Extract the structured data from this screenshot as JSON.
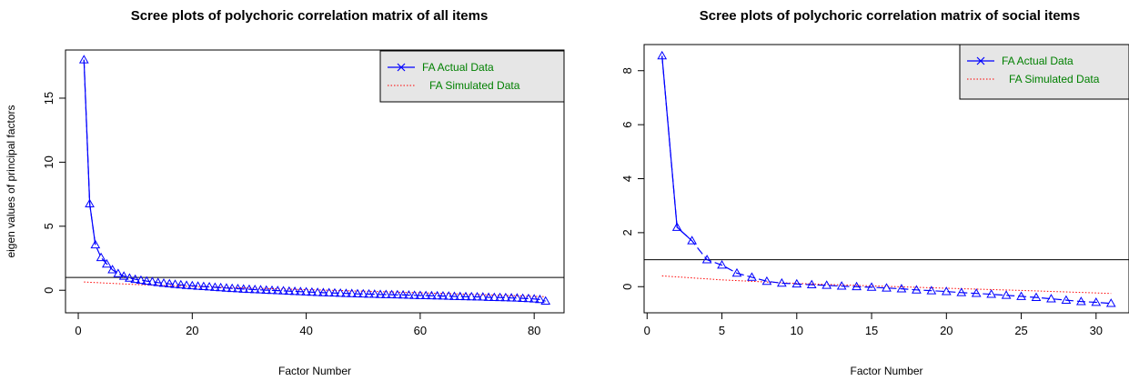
{
  "chart_data": [
    {
      "type": "line",
      "title": "Scree plots of polychoric correlation matrix of all items",
      "xlabel": "Factor Number",
      "ylabel": "eigen values of principal factors",
      "xlim": [
        1,
        82
      ],
      "ylim": [
        -1,
        18
      ],
      "xticks": [
        "0",
        "20",
        "40",
        "60",
        "80"
      ],
      "yticks": [
        "0",
        "5",
        "10",
        "15"
      ],
      "reference_line_y": 1,
      "legend": {
        "placement": "top-right",
        "items": [
          {
            "label": "FA  Actual Data",
            "style": "solid-blue-x"
          },
          {
            "label": "FA  Simulated Data",
            "style": "dotted-red"
          }
        ]
      },
      "series": [
        {
          "name": "FA  Actual Data",
          "color": "#0000ff",
          "x_start": 1,
          "values": [
            18.0,
            6.75,
            3.55,
            2.55,
            2.05,
            1.6,
            1.3,
            1.1,
            0.95,
            0.85,
            0.78,
            0.72,
            0.66,
            0.6,
            0.55,
            0.5,
            0.46,
            0.42,
            0.38,
            0.35,
            0.32,
            0.29,
            0.26,
            0.23,
            0.2,
            0.17,
            0.14,
            0.12,
            0.09,
            0.07,
            0.05,
            0.03,
            0.01,
            -0.01,
            -0.03,
            -0.05,
            -0.07,
            -0.09,
            -0.11,
            -0.13,
            -0.15,
            -0.17,
            -0.19,
            -0.2,
            -0.22,
            -0.23,
            -0.25,
            -0.26,
            -0.28,
            -0.29,
            -0.3,
            -0.31,
            -0.33,
            -0.34,
            -0.35,
            -0.36,
            -0.37,
            -0.38,
            -0.4,
            -0.41,
            -0.42,
            -0.43,
            -0.44,
            -0.45,
            -0.46,
            -0.48,
            -0.49,
            -0.5,
            -0.51,
            -0.52,
            -0.53,
            -0.55,
            -0.56,
            -0.57,
            -0.58,
            -0.6,
            -0.61,
            -0.63,
            -0.65,
            -0.68,
            -0.72,
            -0.85
          ]
        },
        {
          "name": "FA  Simulated Data",
          "color": "#ff0000",
          "x": [
            1,
            10,
            20,
            30,
            40,
            50,
            60,
            70,
            82
          ],
          "values": [
            0.65,
            0.45,
            0.3,
            0.17,
            0.05,
            -0.07,
            -0.2,
            -0.33,
            -0.5
          ]
        }
      ]
    },
    {
      "type": "line",
      "title": "Scree plots of polychoric correlation matrix of social items",
      "xlabel": "Factor Number",
      "ylabel": "",
      "xlim": [
        1,
        31
      ],
      "ylim": [
        -0.6,
        8.6
      ],
      "xticks": [
        "0",
        "5",
        "10",
        "15",
        "20",
        "25",
        "30"
      ],
      "yticks": [
        "0",
        "2",
        "4",
        "6",
        "8"
      ],
      "reference_line_y": 1,
      "legend": {
        "placement": "top-right",
        "items": [
          {
            "label": "FA  Actual Data",
            "style": "solid-blue-x"
          },
          {
            "label": "FA  Simulated Data",
            "style": "dotted-red"
          }
        ]
      },
      "series": [
        {
          "name": "FA  Actual Data",
          "color": "#0000ff",
          "x_start": 1,
          "values": [
            8.55,
            2.2,
            1.7,
            1.0,
            0.8,
            0.5,
            0.35,
            0.2,
            0.13,
            0.1,
            0.07,
            0.05,
            0.02,
            0.0,
            -0.02,
            -0.05,
            -0.08,
            -0.12,
            -0.15,
            -0.18,
            -0.22,
            -0.25,
            -0.28,
            -0.32,
            -0.36,
            -0.4,
            -0.45,
            -0.5,
            -0.55,
            -0.58,
            -0.62
          ]
        },
        {
          "name": "FA  Simulated Data",
          "color": "#ff0000",
          "x": [
            1,
            5,
            10,
            15,
            20,
            25,
            31
          ],
          "values": [
            0.4,
            0.25,
            0.12,
            0.03,
            -0.06,
            -0.14,
            -0.25
          ]
        }
      ]
    }
  ]
}
